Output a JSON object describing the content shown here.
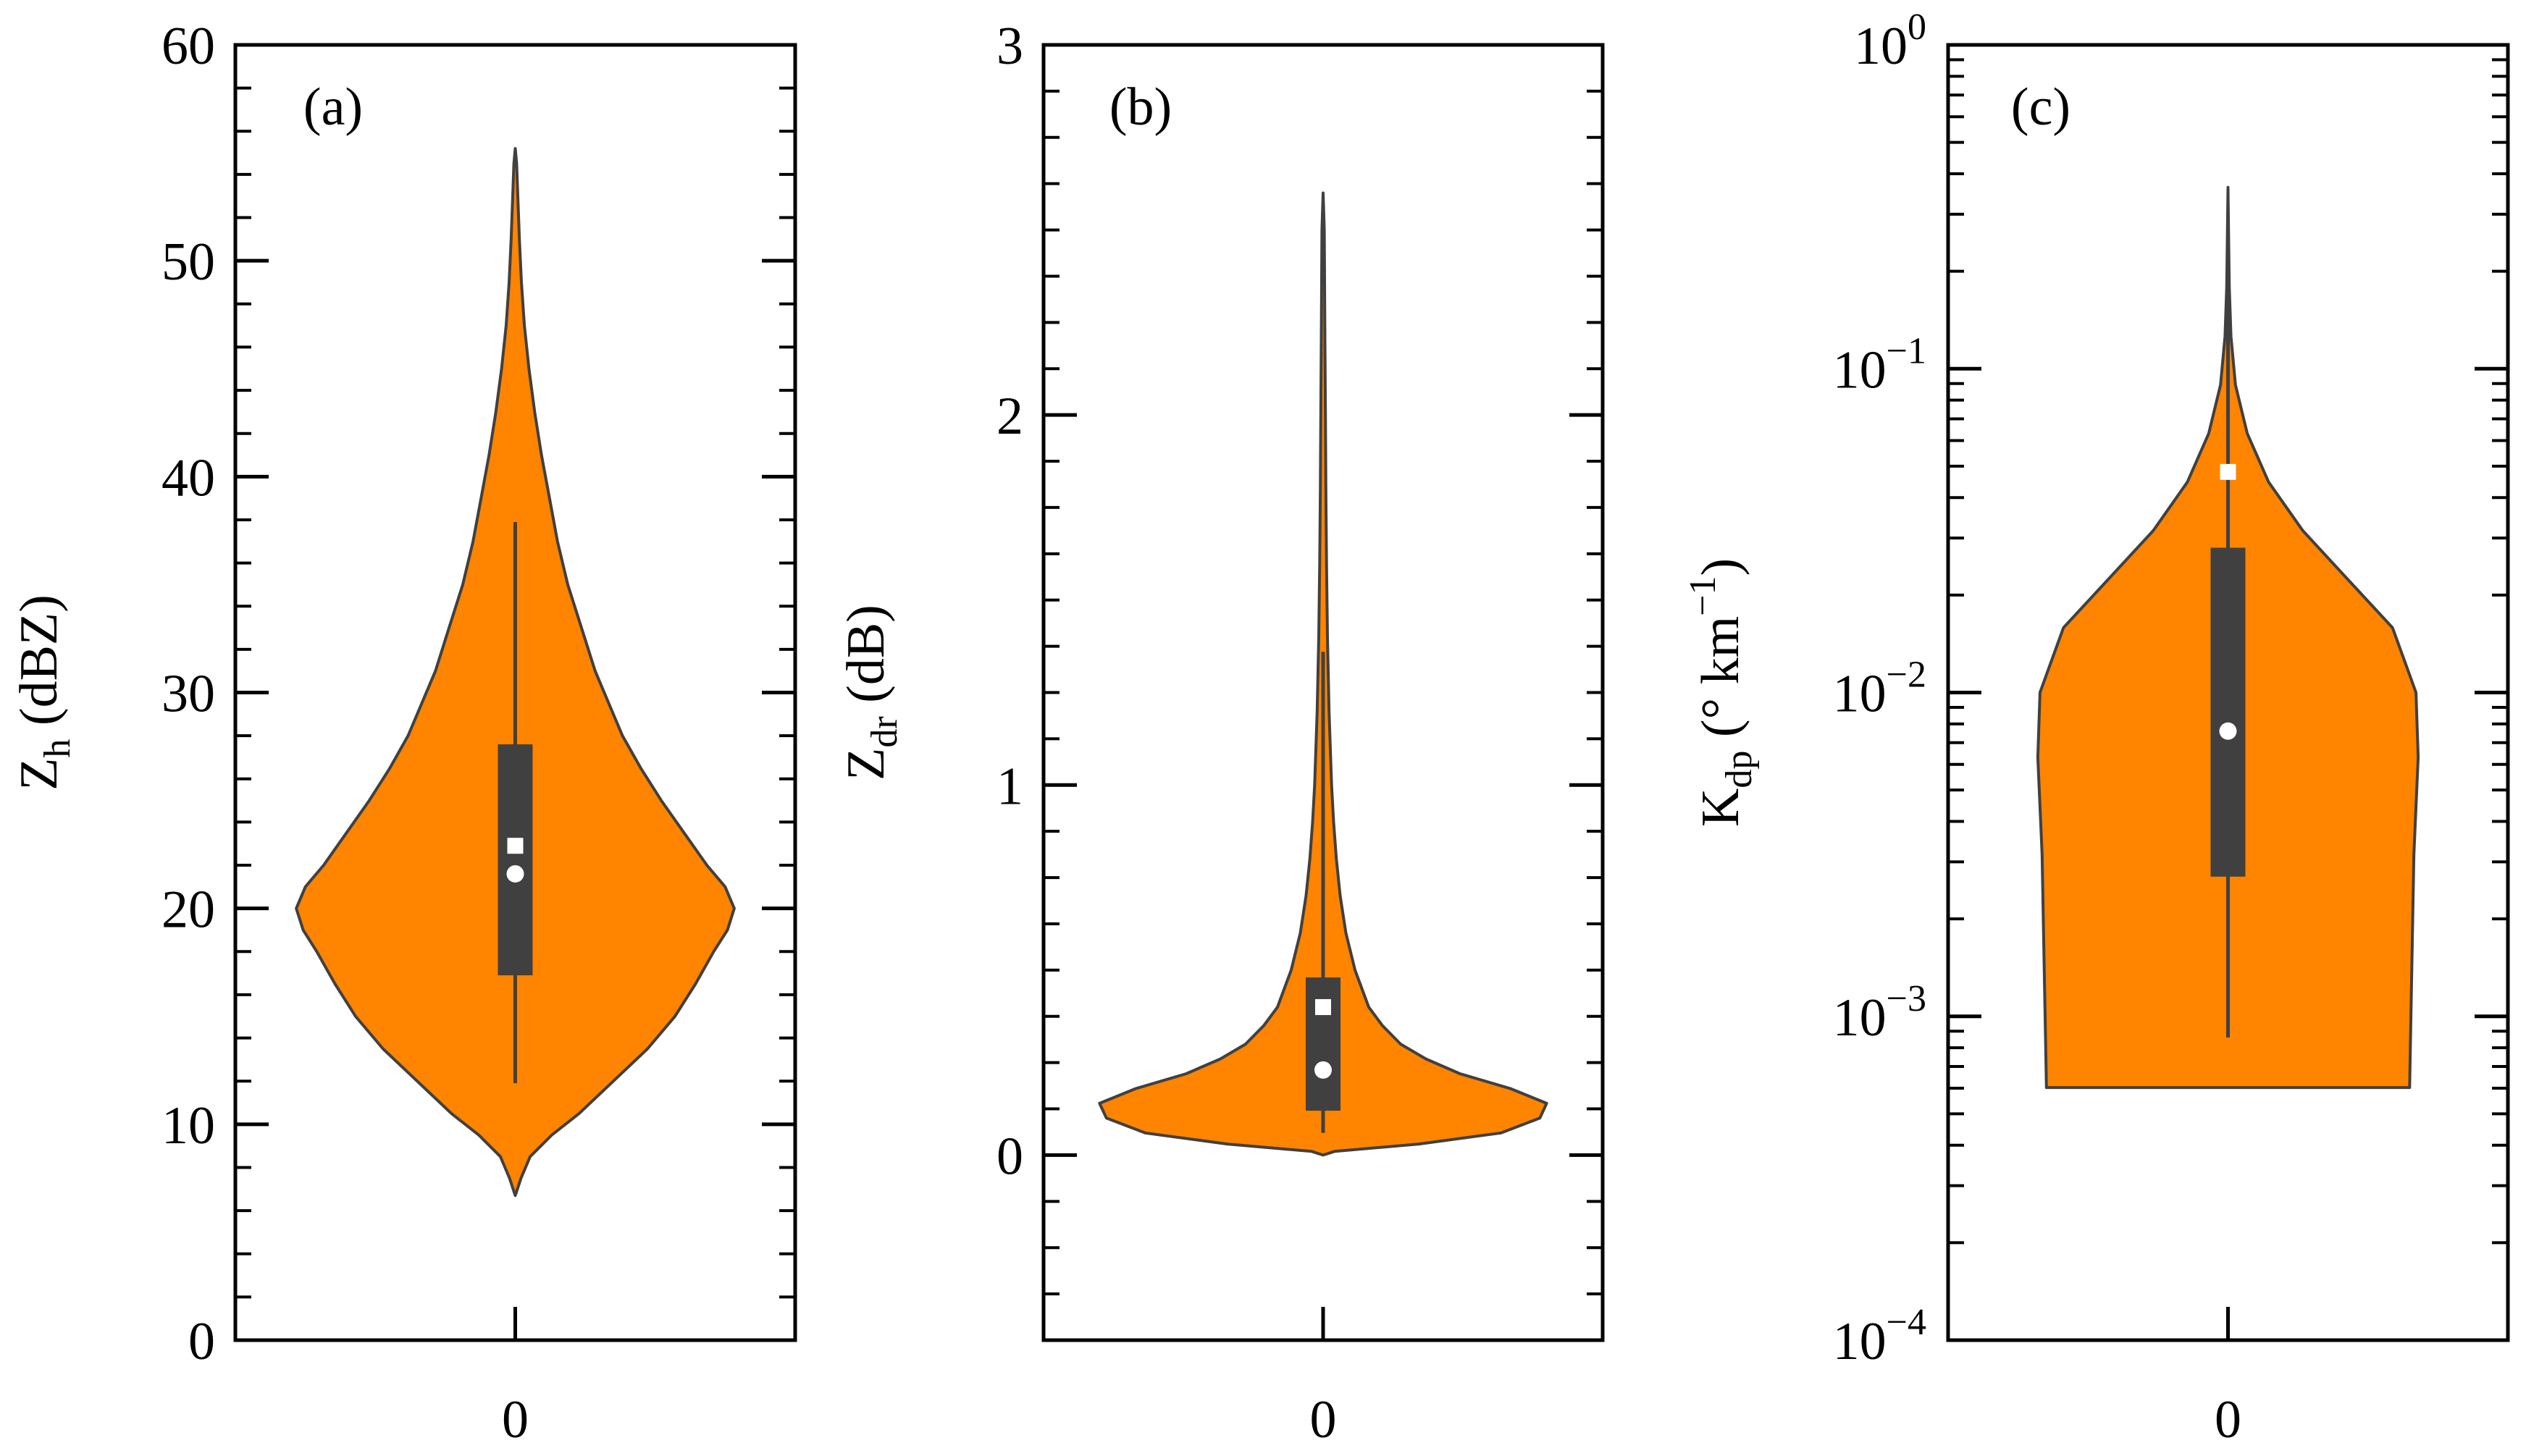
{
  "colors": {
    "violin_fill": "#FF8400",
    "violin_edge": "#404040",
    "box": "#404040",
    "median_marker": "#ffffff",
    "mean_marker": "#ffffff",
    "axes": "#000000"
  },
  "chart_data": [
    {
      "type": "violin",
      "panel_label": "(a)",
      "ylabel": "Z",
      "ylabel_sub": "h",
      "ylabel_unit": " (dBZ)",
      "yscale": "linear",
      "ylim": [
        0,
        60
      ],
      "yticks": [
        0,
        10,
        20,
        30,
        40,
        50,
        60
      ],
      "ytick_labels": [
        "0",
        "10",
        "20",
        "30",
        "40",
        "50",
        "60"
      ],
      "yminor_step": 2,
      "categories": [
        "0"
      ],
      "box": {
        "q1": 16.9,
        "q3": 27.6,
        "whisker_low": 11.9,
        "whisker_high": 37.9
      },
      "median": 21.6,
      "mean": 22.9,
      "violin_width_profile": [
        [
          6.7,
          0
        ],
        [
          7.5,
          0.025
        ],
        [
          8.5,
          0.065
        ],
        [
          9.5,
          0.16
        ],
        [
          10.5,
          0.28
        ],
        [
          12,
          0.43
        ],
        [
          13.5,
          0.58
        ],
        [
          15,
          0.7
        ],
        [
          16.5,
          0.79
        ],
        [
          18,
          0.87
        ],
        [
          19,
          0.93
        ],
        [
          20,
          0.96
        ],
        [
          21,
          0.92
        ],
        [
          22,
          0.84
        ],
        [
          23.5,
          0.74
        ],
        [
          25,
          0.64
        ],
        [
          26.5,
          0.55
        ],
        [
          28,
          0.47
        ],
        [
          29.5,
          0.41
        ],
        [
          31,
          0.35
        ],
        [
          33,
          0.29
        ],
        [
          35,
          0.23
        ],
        [
          37,
          0.185
        ],
        [
          39,
          0.15
        ],
        [
          41,
          0.115
        ],
        [
          43,
          0.085
        ],
        [
          45,
          0.06
        ],
        [
          47,
          0.04
        ],
        [
          49,
          0.027
        ],
        [
          51,
          0.018
        ],
        [
          53,
          0.011
        ],
        [
          54.5,
          0.006
        ],
        [
          55.2,
          0
        ]
      ]
    },
    {
      "type": "violin",
      "panel_label": "(b)",
      "ylabel": "Z",
      "ylabel_sub": "dr",
      "ylabel_unit": " (dB)",
      "yscale": "linear",
      "ylim": [
        -0.5,
        3
      ],
      "yticks": [
        0,
        1,
        2,
        3
      ],
      "ytick_labels": [
        "0",
        "1",
        "2",
        "3"
      ],
      "yminor_step": 0.125,
      "categories": [
        "0"
      ],
      "box": {
        "q1": 0.12,
        "q3": 0.48,
        "whisker_low": 0.06,
        "whisker_high": 1.36
      },
      "median": 0.23,
      "mean": 0.4,
      "violin_width_profile": [
        [
          0,
          0
        ],
        [
          0.01,
          0.05
        ],
        [
          0.03,
          0.42
        ],
        [
          0.06,
          0.78
        ],
        [
          0.1,
          0.95
        ],
        [
          0.14,
          0.98
        ],
        [
          0.18,
          0.82
        ],
        [
          0.22,
          0.6
        ],
        [
          0.26,
          0.45
        ],
        [
          0.3,
          0.34
        ],
        [
          0.35,
          0.26
        ],
        [
          0.4,
          0.2
        ],
        [
          0.5,
          0.14
        ],
        [
          0.6,
          0.1
        ],
        [
          0.7,
          0.075
        ],
        [
          0.8,
          0.058
        ],
        [
          0.9,
          0.046
        ],
        [
          1.0,
          0.037
        ],
        [
          1.2,
          0.026
        ],
        [
          1.4,
          0.019
        ],
        [
          1.6,
          0.015
        ],
        [
          1.8,
          0.012
        ],
        [
          2.0,
          0.01
        ],
        [
          2.2,
          0.008
        ],
        [
          2.4,
          0.006
        ],
        [
          2.5,
          0.005
        ],
        [
          2.6,
          0
        ]
      ]
    },
    {
      "type": "violin",
      "panel_label": "(c)",
      "ylabel": "K",
      "ylabel_sub": "dp",
      "ylabel_unit": " (° km",
      "ylabel_sup": "−1",
      "ylabel_end": ")",
      "yscale": "log",
      "ylim": [
        0.0001,
        1
      ],
      "yticks": [
        0.0001,
        0.001,
        0.01,
        0.1,
        1
      ],
      "ytick_base": "10",
      "ytick_exponents": [
        "−4",
        "−3",
        "−2",
        "−1",
        "0"
      ],
      "categories": [
        "0"
      ],
      "box": {
        "q1": 0.0027,
        "q3": 0.028,
        "whisker_low": 0.00086,
        "whisker_high": 0.19
      },
      "median": 0.0076,
      "mean": 0.048,
      "violin_width_profile_log10": [
        [
          -3.22,
          0.85
        ],
        [
          -2.5,
          0.87
        ],
        [
          -2.2,
          0.89
        ],
        [
          -2.0,
          0.88
        ],
        [
          -1.8,
          0.77
        ],
        [
          -1.65,
          0.56
        ],
        [
          -1.5,
          0.35
        ],
        [
          -1.35,
          0.19
        ],
        [
          -1.2,
          0.09
        ],
        [
          -1.05,
          0.035
        ],
        [
          -0.9,
          0.014
        ],
        [
          -0.75,
          0.006
        ],
        [
          -0.6,
          0.003
        ],
        [
          -0.44,
          0
        ]
      ]
    }
  ]
}
